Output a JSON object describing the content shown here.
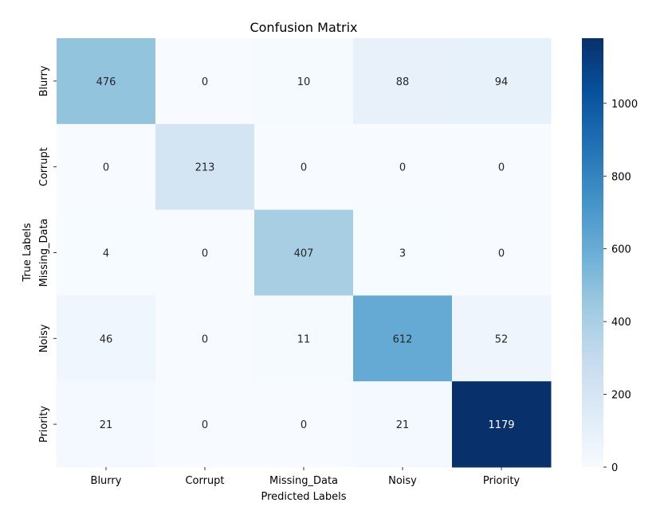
{
  "chart_data": {
    "type": "heatmap",
    "title": "Confusion Matrix",
    "xlabel": "Predicted Labels",
    "ylabel": "True Labels",
    "x_categories": [
      "Blurry",
      "Corrupt",
      "Missing_Data",
      "Noisy",
      "Priority"
    ],
    "y_categories": [
      "Blurry",
      "Corrupt",
      "Missing_Data",
      "Noisy",
      "Priority"
    ],
    "values": [
      [
        476,
        0,
        10,
        88,
        94
      ],
      [
        0,
        213,
        0,
        0,
        0
      ],
      [
        4,
        0,
        407,
        3,
        0
      ],
      [
        46,
        0,
        11,
        612,
        52
      ],
      [
        21,
        0,
        0,
        21,
        1179
      ]
    ],
    "colormap": "Blues",
    "colorbar": {
      "range": [
        0,
        1179
      ],
      "ticks": [
        0,
        200,
        400,
        600,
        800,
        1000
      ]
    },
    "colors": {
      "low": "#f7fbff",
      "high": "#08306b"
    }
  }
}
